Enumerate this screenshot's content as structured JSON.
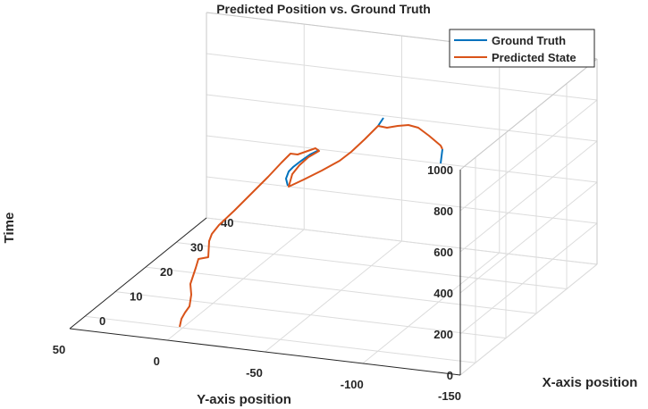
{
  "chart_data": {
    "type": "line3d",
    "title": "Predicted Position vs. Ground Truth",
    "xlabel": "X-axis position",
    "ylabel": "Y-axis position",
    "zlabel": "Time",
    "xlim": [
      -5,
      40
    ],
    "ylim": [
      -150,
      50
    ],
    "zlim": [
      0,
      1000
    ],
    "xticks": [
      0,
      10,
      20,
      30,
      40
    ],
    "yticks": [
      50,
      0,
      -50,
      -100,
      -150
    ],
    "zticks": [
      0,
      200,
      400,
      600,
      800,
      1000
    ],
    "grid": true,
    "legend_position": "top-right",
    "series": [
      {
        "name": "Ground Truth",
        "color": "#0072BD"
      },
      {
        "name": "Predicted State",
        "color": "#D95319"
      }
    ]
  }
}
